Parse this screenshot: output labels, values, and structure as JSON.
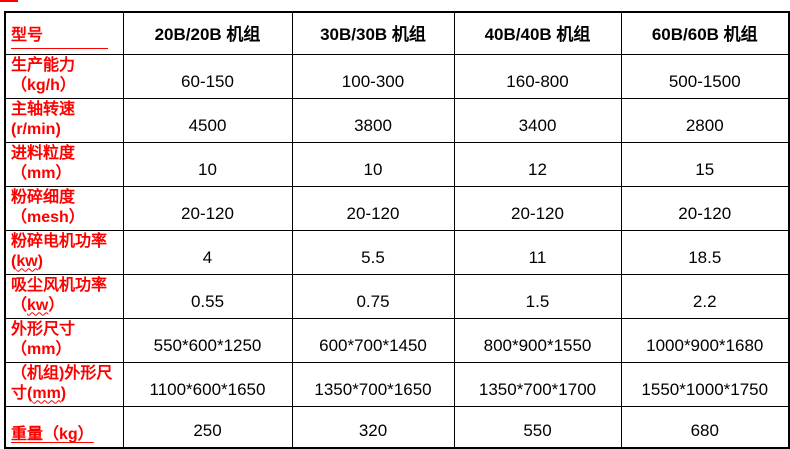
{
  "colors": {
    "label_red": "#ff0000",
    "text_black": "#000000",
    "border_black": "#000000",
    "background": "#ffffff"
  },
  "table": {
    "header": {
      "model_label": "型号",
      "columns": [
        "20B/20B 机组",
        "30B/30B 机组",
        "40B/40B 机组",
        "60B/60B 机组"
      ]
    },
    "rows": [
      {
        "line1": "生产能力",
        "line2_pre": "（kg/h）",
        "line2_wavy": "",
        "line2_post": "",
        "underline": false,
        "values": [
          "60-150",
          "100-300",
          "160-800",
          "500-1500"
        ]
      },
      {
        "line1": "主轴转速",
        "line2_pre": "(r/min)",
        "line2_wavy": "",
        "line2_post": "",
        "underline": false,
        "values": [
          "4500",
          "3800",
          "3400",
          "2800"
        ]
      },
      {
        "line1": "进料粒度",
        "line2_pre": "（mm）",
        "line2_wavy": "",
        "line2_post": "",
        "underline": false,
        "values": [
          "10",
          "10",
          "12",
          "15"
        ]
      },
      {
        "line1": "粉碎细度",
        "line2_pre": "（mesh）",
        "line2_wavy": "",
        "line2_post": "",
        "underline": false,
        "values": [
          "20-120",
          "20-120",
          "20-120",
          "20-120"
        ]
      },
      {
        "line1": "粉碎电机功率",
        "line2_pre": "(",
        "line2_wavy": "kw",
        "line2_post": ")",
        "underline": false,
        "values": [
          "4",
          "5.5",
          "11",
          "18.5"
        ]
      },
      {
        "line1": "吸尘风机功率",
        "line2_pre": "（",
        "line2_wavy": "kw",
        "line2_post": "）",
        "underline": false,
        "values": [
          "0.55",
          "0.75",
          "1.5",
          "2.2"
        ]
      },
      {
        "line1": "外形尺寸",
        "line2_pre": "（mm）",
        "line2_wavy": "",
        "line2_post": "",
        "underline": false,
        "values": [
          "550*600*1250",
          "600*700*1450",
          "800*900*1550",
          "1000*900*1680"
        ]
      },
      {
        "line1": "（机组)外形尺",
        "line2_pre": "寸(",
        "line2_wavy": "mm",
        "line2_post": ")",
        "underline": false,
        "values": [
          "1100*600*1650",
          "1350*700*1650",
          "1350*700*1700",
          "1550*1000*1750"
        ]
      },
      {
        "line1": "重量（kg）",
        "line2_pre": "",
        "line2_wavy": "",
        "line2_post": "",
        "underline": true,
        "values": [
          "250",
          "320",
          "550",
          "680"
        ]
      }
    ]
  }
}
